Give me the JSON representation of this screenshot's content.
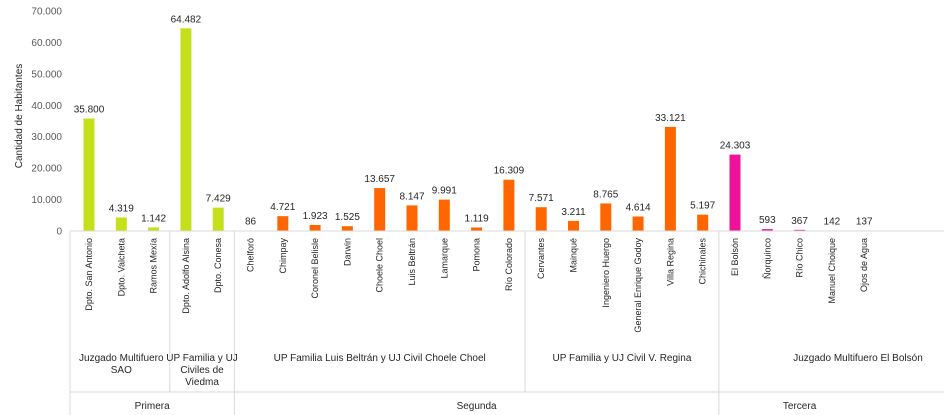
{
  "chart_data": {
    "type": "bar",
    "ylabel": "Cantidad de Habitantes",
    "ylim": [
      0,
      70000
    ],
    "y_ticks": [
      "0",
      "10.000",
      "20.000",
      "30.000",
      "40.000",
      "50.000",
      "60.000",
      "70.000"
    ],
    "grid": false,
    "categories": [
      "Dpto. San Antonio",
      "Dpto. Valcheta",
      "Ramos Mexía",
      "Dpto. Adolfo Alsina",
      "Dpto. Conesa",
      "Chelforó",
      "Chimpay",
      "Coronel Belisle",
      "Darwin",
      "Choele Choel",
      "Luis Beltrán",
      "Lamarque",
      "Pomona",
      "Río Colorado",
      "Cervantes",
      "Mainqué",
      "Ingeniero Huergo",
      "General Enrique Godoy",
      "Villa Regina",
      "Chichinales",
      "El Bolsón",
      "Ñorquinco",
      "Río Chico",
      "Manuel Choique",
      "Ojos de Agua"
    ],
    "values": [
      35800,
      4319,
      1142,
      64482,
      7429,
      86,
      4721,
      1923,
      1525,
      13657,
      8147,
      9991,
      1119,
      16309,
      7571,
      3211,
      8765,
      4614,
      33121,
      5197,
      24303,
      593,
      367,
      142,
      137
    ],
    "data_labels": [
      "35.800",
      "4.319",
      "1.142",
      "64.482",
      "7.429",
      "86",
      "4.721",
      "1.923",
      "1.525",
      "13.657",
      "8.147",
      "9.991",
      "1.119",
      "16.309",
      "7.571",
      "3.211",
      "8.765",
      "4.614",
      "33.121",
      "5.197",
      "24.303",
      "593",
      "367",
      "142",
      "137"
    ],
    "group_of_category": [
      0,
      0,
      0,
      1,
      1,
      2,
      2,
      2,
      2,
      2,
      2,
      2,
      2,
      2,
      3,
      3,
      3,
      3,
      3,
      3,
      4,
      4,
      4,
      4,
      4
    ],
    "groups": [
      {
        "label_lines": [
          "Juzgado Multifuero",
          "SAO"
        ],
        "color": "#C5E01B"
      },
      {
        "label_lines": [
          "UP Familia y UJ",
          "Civiles de",
          "Viedma"
        ],
        "color": "#C5E01B"
      },
      {
        "label_lines": [
          "UP Familia  Luis Beltrán y UJ Civil Choele Choel"
        ],
        "color": "#FF6600"
      },
      {
        "label_lines": [
          "UP Familia  y UJ Civil V. Regina"
        ],
        "color": "#FF6600"
      },
      {
        "label_lines": [
          "Juzgado Multifuero El Bolsón"
        ],
        "color": "#EE1199"
      }
    ],
    "circunscripciones": [
      {
        "label": "Primera",
        "first": 0,
        "last": 4
      },
      {
        "label": "Segunda",
        "first": 5,
        "last": 19
      },
      {
        "label": "Tercera",
        "first": 20,
        "last": 24
      }
    ]
  }
}
